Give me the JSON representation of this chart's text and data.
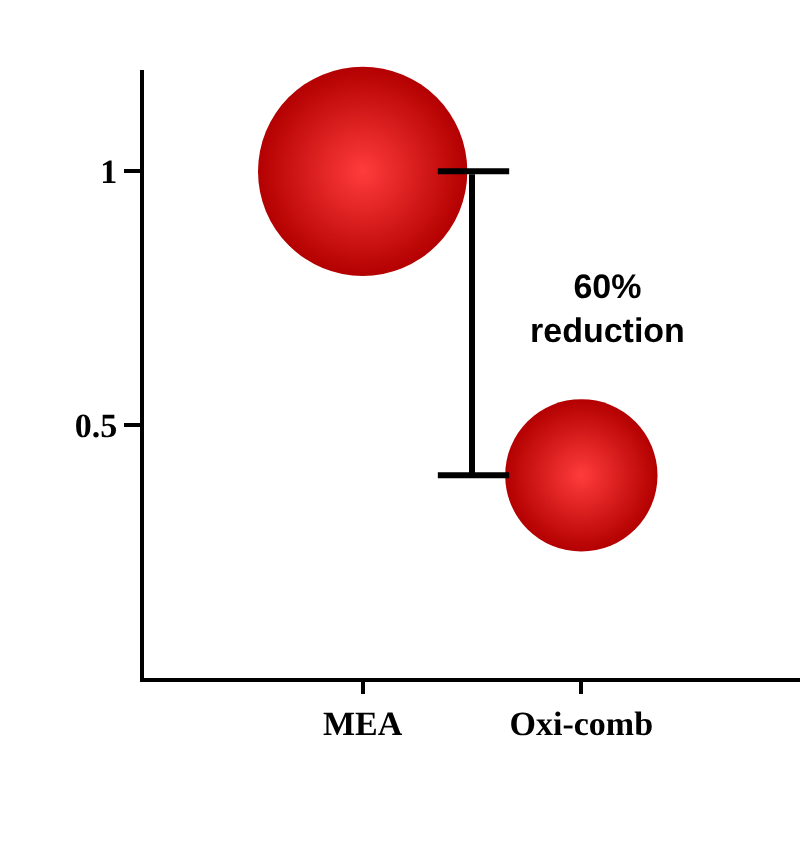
{
  "chart_data": {
    "type": "bubble",
    "categories": [
      "MEA",
      "Oxi-comb"
    ],
    "values": [
      1,
      0.4
    ],
    "sizes": [
      1,
      0.53
    ],
    "color": "#e00000",
    "ylim": [
      0,
      1.2
    ],
    "yticks": [
      0.5,
      1
    ],
    "annotations": [
      "60%\nreduction"
    ],
    "legend": false
  }
}
